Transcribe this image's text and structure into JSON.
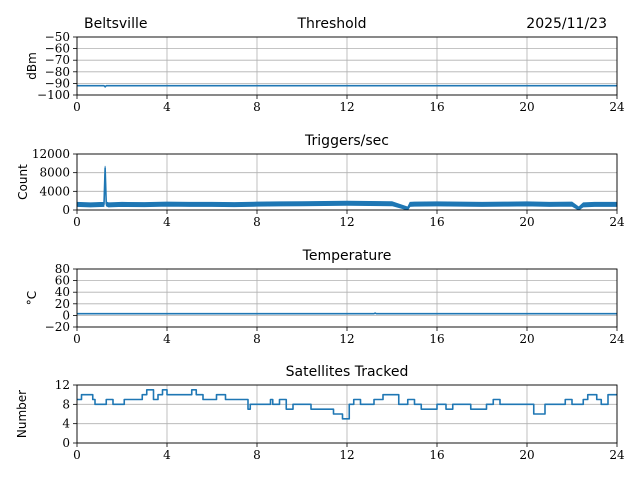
{
  "header": {
    "station": "Beltsville",
    "title": "Threshold",
    "date": "2025/11/23"
  },
  "series_color": "#1f77b4",
  "chart_data": [
    {
      "type": "line",
      "title": "",
      "xlabel": "",
      "ylabel": "dBm",
      "xlim": [
        0,
        24
      ],
      "ylim": [
        -100,
        -50
      ],
      "xticks": [
        "0",
        "4",
        "8",
        "12",
        "16",
        "20",
        "24"
      ],
      "yticks": [
        "−50",
        "−60",
        "−70",
        "−80",
        "−90",
        "−100"
      ],
      "grid": true,
      "series": [
        {
          "x": [
            0,
            1.2,
            1.25,
            1.3,
            24
          ],
          "y": [
            -92,
            -92,
            -93,
            -92,
            -92
          ]
        }
      ]
    },
    {
      "type": "line",
      "title": "Triggers/sec",
      "xlabel": "",
      "ylabel": "Count",
      "xlim": [
        0,
        24
      ],
      "ylim": [
        0,
        12000
      ],
      "xticks": [
        "0",
        "4",
        "8",
        "12",
        "16",
        "20",
        "24"
      ],
      "yticks": [
        "12000",
        "8000",
        "4000",
        "0"
      ],
      "grid": true,
      "series": [
        {
          "x": [
            0,
            0.6,
            1.2,
            1.25,
            1.3,
            1.4,
            2,
            3,
            4,
            5,
            6,
            7,
            8,
            9,
            10,
            11,
            12,
            13,
            14,
            14.7,
            14.8,
            15,
            16,
            17,
            18,
            19,
            20,
            20.5,
            21,
            22,
            22.3,
            22.5,
            23,
            24
          ],
          "y": [
            1200,
            1100,
            1200,
            9000,
            1300,
            1100,
            1200,
            1150,
            1250,
            1200,
            1200,
            1150,
            1250,
            1300,
            1350,
            1400,
            1450,
            1400,
            1350,
            200,
            1200,
            1250,
            1300,
            1250,
            1200,
            1250,
            1300,
            1250,
            1200,
            1250,
            200,
            1100,
            1200,
            1200
          ],
          "band": 900
        }
      ]
    },
    {
      "type": "line",
      "title": "Temperature",
      "xlabel": "",
      "ylabel": "°C",
      "xlim": [
        0,
        24
      ],
      "ylim": [
        -20,
        80
      ],
      "xticks": [
        "0",
        "4",
        "8",
        "12",
        "16",
        "20",
        "24"
      ],
      "yticks": [
        "80",
        "60",
        "40",
        "20",
        "0",
        "−20"
      ],
      "grid": true,
      "series": [
        {
          "x": [
            0,
            13.2,
            13.25,
            13.3,
            24
          ],
          "y": [
            3,
            3,
            4,
            3,
            3
          ]
        }
      ]
    },
    {
      "type": "line",
      "title": "Satellites Tracked",
      "xlabel": "",
      "ylabel": "Number",
      "xlim": [
        0,
        24
      ],
      "ylim": [
        0,
        12
      ],
      "xticks": [
        "0",
        "4",
        "8",
        "12",
        "16",
        "20",
        "24"
      ],
      "yticks": [
        "12",
        "8",
        "4",
        "0"
      ],
      "grid": true,
      "series": [
        {
          "step": true,
          "x": [
            0,
            0.2,
            0.7,
            0.8,
            1.3,
            1.6,
            2.1,
            2.9,
            3.1,
            3.4,
            3.6,
            3.8,
            4.0,
            4.3,
            5.1,
            5.3,
            5.6,
            6.2,
            6.6,
            7.0,
            7.6,
            7.7,
            8.6,
            8.7,
            9.0,
            9.3,
            9.6,
            9.9,
            10.4,
            10.7,
            11.0,
            11.4,
            11.6,
            11.8,
            12.1,
            12.3,
            12.6,
            13.2,
            13.6,
            14.3,
            14.7,
            15.0,
            15.3,
            16.0,
            16.4,
            16.7,
            17.0,
            17.5,
            18.2,
            18.5,
            18.8,
            19.4,
            19.9,
            20.3,
            20.8,
            21.4,
            21.7,
            22.0,
            22.5,
            22.7,
            23.1,
            23.3,
            23.6,
            23.9
          ],
          "y": [
            9,
            10,
            9,
            8,
            9,
            8,
            9,
            10,
            11,
            9,
            10,
            11,
            10,
            10,
            11,
            10,
            9,
            10,
            9,
            9,
            7,
            8,
            9,
            8,
            9,
            7,
            8,
            8,
            7,
            7,
            7,
            6,
            6,
            5,
            8,
            9,
            8,
            9,
            10,
            8,
            9,
            8,
            7,
            8,
            7,
            8,
            8,
            7,
            8,
            9,
            8,
            8,
            8,
            6,
            8,
            8,
            9,
            8,
            9,
            10,
            9,
            8,
            10,
            10
          ]
        }
      ]
    }
  ]
}
